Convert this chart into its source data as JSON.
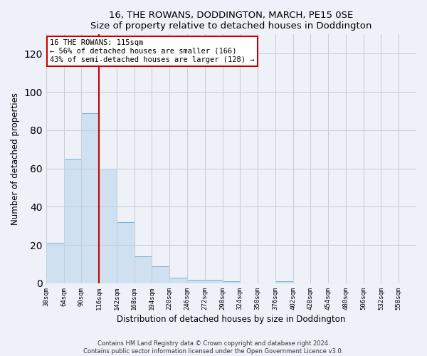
{
  "title": "16, THE ROWANS, DODDINGTON, MARCH, PE15 0SE",
  "subtitle": "Size of property relative to detached houses in Doddington",
  "xlabel": "Distribution of detached houses by size in Doddington",
  "ylabel": "Number of detached properties",
  "bar_color": "#cfe0f0",
  "bar_edge_color": "#7aafd4",
  "bin_labels": [
    "38sqm",
    "64sqm",
    "90sqm",
    "116sqm",
    "142sqm",
    "168sqm",
    "194sqm",
    "220sqm",
    "246sqm",
    "272sqm",
    "298sqm",
    "324sqm",
    "350sqm",
    "376sqm",
    "402sqm",
    "428sqm",
    "454sqm",
    "480sqm",
    "506sqm",
    "532sqm",
    "558sqm"
  ],
  "bar_heights": [
    21,
    65,
    89,
    60,
    32,
    14,
    9,
    3,
    2,
    2,
    1,
    0,
    0,
    1,
    0,
    0,
    0,
    0,
    0,
    0,
    0
  ],
  "ylim": [
    0,
    130
  ],
  "yticks": [
    0,
    20,
    40,
    60,
    80,
    100,
    120
  ],
  "property_line_x": 3.0,
  "annotation_text": "16 THE ROWANS: 115sqm\n← 56% of detached houses are smaller (166)\n43% of semi-detached houses are larger (128) →",
  "annotation_box_color": "#ffffff",
  "annotation_box_edge": "#cc0000",
  "vline_color": "#cc0000",
  "footer_line1": "Contains HM Land Registry data © Crown copyright and database right 2024.",
  "footer_line2": "Contains public sector information licensed under the Open Government Licence v3.0.",
  "background_color": "#eef2f8",
  "plot_background": "#eef2f8",
  "grid_color": "#c8cfd8"
}
